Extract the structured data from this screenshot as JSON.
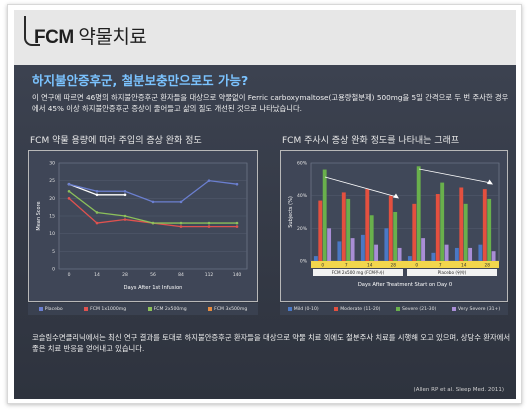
{
  "header": {
    "title_bold": "FCM",
    "title_rest": " 약물치료"
  },
  "headline": "하지불안증후군, 철분보충만으로도 가능?",
  "intro": "이 연구에 따르면 46명의 하지불안증후군 환자들을 대상으로 약물없이 Ferric carboxymaltose(고용량철분제) 500mg을 5일 간격으로 두 번 주사한 경우에서 45% 이상 하지불안증후군 증상이 줄어들고 삶의 질도 개선된 것으로 나타났습니다.",
  "footer_text": "코슬림수면클리닉에서는 최신 연구 결과를 토대로 하지불안증후군 환자들을 대상으로 약물 치료 외에도 철분주사 치료를 시행해 오고 있으며, 상당수 환자에서 좋은 치료 반응을 얻어내고 있습니다.",
  "citation": "(Allen RP et al. Sleep Med. 2011)",
  "colors": {
    "series1": "#6b7fd0",
    "series2": "#e0524f",
    "series3": "#8cc05a",
    "series4": "#e58a3e",
    "bar_mild": "#4a78c4",
    "bar_moderate": "#e4503f",
    "bar_severe": "#69b04c",
    "bar_very_severe": "#a98ed6"
  },
  "chart_data": [
    {
      "type": "line",
      "title": "FCM 약물 용량에 따라 주입의 증상 완화 정도",
      "xlabel": "Days After 1st Infusion",
      "ylabel": "Mean Score",
      "x": [
        "0",
        "14",
        "28",
        "56",
        "84",
        "112",
        "140"
      ],
      "ylim": [
        0,
        30
      ],
      "yticks": [
        "0",
        "5",
        "10",
        "15",
        "20",
        "25",
        "30"
      ],
      "series": [
        {
          "name": "Placebo",
          "values": [
            24,
            21,
            21,
            null,
            null,
            null,
            null
          ],
          "color": "#ffffff"
        },
        {
          "name": "FCM 1x1000mg",
          "values": [
            24,
            22,
            22,
            19,
            19,
            25,
            24
          ],
          "color": "#6b7fd0"
        },
        {
          "name": "FCM 2x500mg",
          "values": [
            20,
            13,
            14,
            13,
            12,
            12,
            12
          ],
          "color": "#e0524f"
        },
        {
          "name": "FCM 3x500mg",
          "values": [
            22,
            16,
            15,
            13,
            13,
            13,
            13
          ],
          "color": "#8cc05a"
        }
      ],
      "legend": [
        "Placebo",
        "FCM 1x1000mg",
        "FCM 2x500mg",
        "FCM 3x500mg"
      ]
    },
    {
      "type": "bar",
      "title": "FCM 주사시 증상 완화 정도를 나타내는 그래프",
      "xlabel": "Days After Treatment Start on Day 0",
      "ylabel": "Subjects (%)",
      "ylim": [
        0,
        60
      ],
      "yticks": [
        "0%",
        "20%",
        "40%",
        "60%"
      ],
      "groups": [
        "FCM 2x500 mg (FCM주사)",
        "Placebo (위약)"
      ],
      "categories": [
        "0",
        "7",
        "14",
        "28",
        "0",
        "7",
        "14",
        "28"
      ],
      "series": [
        {
          "name": "Mild (0-10)",
          "values": [
            3,
            12,
            16,
            20,
            3,
            5,
            8,
            10
          ],
          "color": "#4a78c4"
        },
        {
          "name": "Moderate (11-20)",
          "values": [
            37,
            42,
            44,
            40,
            35,
            41,
            45,
            44
          ],
          "color": "#e4503f"
        },
        {
          "name": "Severe (21-30)",
          "values": [
            56,
            38,
            28,
            30,
            58,
            48,
            35,
            38
          ],
          "color": "#69b04c"
        },
        {
          "name": "Very Severe (31+)",
          "values": [
            20,
            14,
            10,
            8,
            14,
            10,
            8,
            6
          ],
          "color": "#a98ed6"
        }
      ],
      "legend": [
        "Mild (0-10)",
        "Moderate (11-20)",
        "Severe (21-30)",
        "Very Severe (31+)"
      ]
    }
  ]
}
